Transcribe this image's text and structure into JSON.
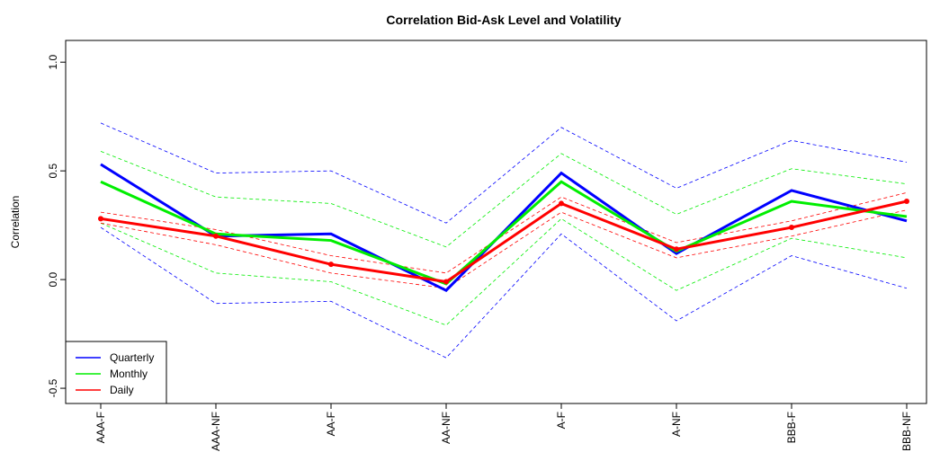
{
  "chart_data": {
    "type": "line",
    "title": "Correlation Bid-Ask Level and Volatility",
    "y_label": "Correlation",
    "categories": [
      "AAA-F",
      "AAA-NF",
      "AA-F",
      "AA-NF",
      "A-F",
      "A-NF",
      "BBB-F",
      "BBB-NF"
    ],
    "series": [
      {
        "name": "Quarterly",
        "color": "#0000ff",
        "markers": false,
        "values": [
          0.53,
          0.2,
          0.21,
          -0.05,
          0.49,
          0.12,
          0.41,
          0.27
        ],
        "upper": [
          0.72,
          0.49,
          0.5,
          0.26,
          0.7,
          0.42,
          0.64,
          0.54
        ],
        "lower": [
          0.24,
          -0.11,
          -0.1,
          -0.36,
          0.21,
          -0.19,
          0.11,
          -0.04
        ]
      },
      {
        "name": "Monthly",
        "color": "#00ee00",
        "markers": false,
        "values": [
          0.45,
          0.21,
          0.18,
          -0.02,
          0.45,
          0.13,
          0.36,
          0.29
        ],
        "upper": [
          0.59,
          0.38,
          0.35,
          0.15,
          0.58,
          0.3,
          0.51,
          0.44
        ],
        "lower": [
          0.26,
          0.03,
          -0.01,
          -0.21,
          0.28,
          -0.05,
          0.19,
          0.1
        ]
      },
      {
        "name": "Daily",
        "color": "#ff0000",
        "markers": true,
        "values": [
          0.28,
          0.2,
          0.07,
          -0.01,
          0.35,
          0.14,
          0.24,
          0.36
        ],
        "upper": [
          0.31,
          0.23,
          0.11,
          0.03,
          0.38,
          0.17,
          0.27,
          0.4
        ],
        "lower": [
          0.26,
          0.16,
          0.03,
          -0.04,
          0.31,
          0.1,
          0.2,
          0.32
        ]
      }
    ],
    "ylim": [
      -0.57,
      1.1
    ],
    "yticks": [
      -0.5,
      {
        "value": 0,
        "label": "0.0"
      },
      0.5,
      {
        "value": 1,
        "label": "1.0"
      }
    ],
    "legend": "bottom-left",
    "grid": false
  }
}
